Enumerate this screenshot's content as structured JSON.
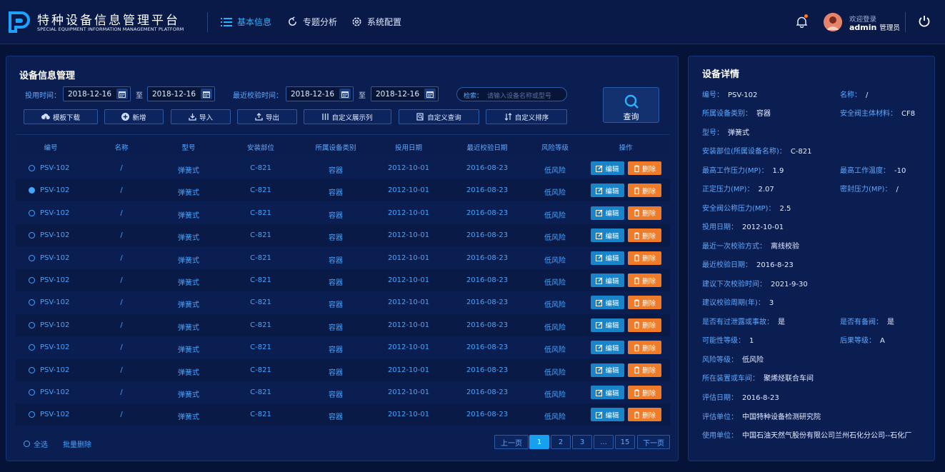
{
  "header": {
    "title_cn": "特种设备信息管理平台",
    "title_en": "SPECIAL EQUIPMENT INFORMATION MANAGEMENT PLATFORM",
    "nav": [
      {
        "label": "基本信息",
        "icon": "list-icon",
        "active": true
      },
      {
        "label": "专题分析",
        "icon": "refresh-icon",
        "active": false
      },
      {
        "label": "系统配置",
        "icon": "gear-icon",
        "active": false
      }
    ],
    "welcome": "欢迎登录",
    "username": "admin",
    "role": "管理员"
  },
  "main": {
    "title": "设备信息管理",
    "filters": {
      "use_time_label": "投用时间：",
      "use_from": "2018-12-16",
      "to1": "至",
      "use_to": "2018-12-16",
      "check_time_label": "最近校验时间：",
      "check_from": "2018-12-16",
      "to2": "至",
      "check_to": "2018-12-16",
      "search_label": "检索：",
      "search_placeholder": "请输入设备名称或型号",
      "query_button": "查询"
    },
    "toolbar": [
      "模板下载",
      "新增",
      "导入",
      "导出",
      "自定义展示列",
      "自定义查询",
      "自定义排序"
    ],
    "columns": [
      "编号",
      "名称",
      "型号",
      "安装部位",
      "所属设备类别",
      "投用日期",
      "最近校验日期",
      "风险等级",
      "操作"
    ],
    "row_template": {
      "code": "PSV-102",
      "name": "/",
      "model": "弹簧式",
      "location": "C-821",
      "category": "容器",
      "use_date": "2012-10-01",
      "check_date": "2016-08-23",
      "risk": "低风险"
    },
    "row_count": 12,
    "selected_row": 1,
    "edit_label": "编辑",
    "delete_label": "删除",
    "select_all": "全选",
    "batch_delete": "批量删除",
    "pagination": [
      "上一页",
      "1",
      "2",
      "3",
      "...",
      "15",
      "下一页"
    ],
    "current_page": "1"
  },
  "detail": {
    "title": "设备详情",
    "fields": {
      "code": {
        "label": "编号：",
        "value": "PSV-102"
      },
      "name": {
        "label": "名称：",
        "value": "/"
      },
      "category": {
        "label": "所属设备类别：",
        "value": "容器"
      },
      "material": {
        "label": "安全阀主体材料：",
        "value": "CF8"
      },
      "model": {
        "label": "型号：",
        "value": "弹簧式"
      },
      "location": {
        "label": "安装部位(所属设备名称)：",
        "value": "C-821"
      },
      "max_pressure": {
        "label": "最高工作压力(MP)：",
        "value": "1.9"
      },
      "max_temp": {
        "label": "最高工作温度：",
        "value": "-10"
      },
      "set_pressure": {
        "label": "正定压力(MP)：",
        "value": "2.07"
      },
      "seal_pressure": {
        "label": "密封压力(MP)：",
        "value": "/"
      },
      "nominal_pressure": {
        "label": "安全阀公称压力(MP)：",
        "value": "2.5"
      },
      "use_date": {
        "label": "投用日期：",
        "value": "2012-10-01"
      },
      "last_method": {
        "label": "最近一次校验方式：",
        "value": "离线校验"
      },
      "last_date": {
        "label": "最近校验日期：",
        "value": "2016-8-23"
      },
      "next_time": {
        "label": "建议下次校验时间：",
        "value": "2021-9-30"
      },
      "period": {
        "label": "建议校验周期(年)：",
        "value": "3"
      },
      "leak": {
        "label": "是否有过泄露或事故：",
        "value": "是"
      },
      "backup": {
        "label": "是否有备阀：",
        "value": "是"
      },
      "possibility": {
        "label": "可能性等级：",
        "value": "1"
      },
      "consequence": {
        "label": "后果等级：",
        "value": "A"
      },
      "risk": {
        "label": "风险等级：",
        "value": "低风险"
      },
      "unit_workshop": {
        "label": "所在装置或车间：",
        "value": "聚烯烃联合车间"
      },
      "eval_date": {
        "label": "评估日期：",
        "value": "2016-8-23"
      },
      "eval_unit": {
        "label": "评估单位：",
        "value": "中国特种设备检测研究院"
      },
      "user_unit": {
        "label": "使用单位：",
        "value": "中国石油天然气股份有限公司兰州石化分公司--石化厂"
      }
    }
  },
  "colors": {
    "accent": "#43a6ff",
    "edit": "#1a84c9",
    "delete": "#f07b28",
    "background": "#061338"
  }
}
